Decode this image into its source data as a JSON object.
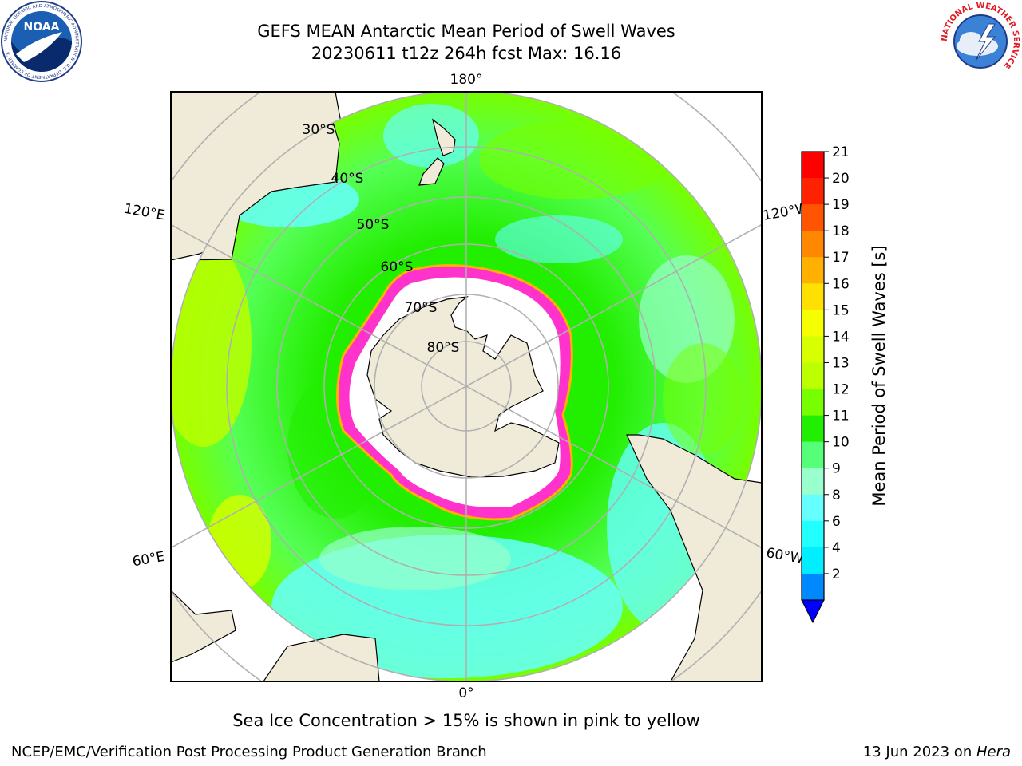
{
  "header": {
    "title_line1": "GEFS MEAN Antarctic Mean Period of Swell Waves",
    "title_line2": "20230611 t12z 264h fcst   Max: 16.16"
  },
  "logos": {
    "left": {
      "name": "noaa-logo",
      "text": "NOAA",
      "ring_text": "NATIONAL OCEANIC AND ATMOSPHERIC ADMINISTRATION · U.S. DEPARTMENT OF COMMERCE"
    },
    "right": {
      "name": "nws-logo",
      "ring_text": "NATIONAL WEATHER SERVICE"
    }
  },
  "map": {
    "projection": "south-polar-stereographic",
    "longitude_labels": {
      "top": "180°",
      "bottom": "0°",
      "left_upper": "120°E",
      "left_lower": "60°E",
      "right_upper": "120°W",
      "right_lower": "60°W"
    },
    "latitude_labels": [
      "30°S",
      "40°S",
      "50°S",
      "60°S",
      "70°S",
      "80°S"
    ],
    "colors": {
      "land": "#efebd8",
      "ice_shelf": "#ffffff",
      "sea_ice": "#ff33cc",
      "grid": "#b0b0b0"
    }
  },
  "colorbar": {
    "label": "Mean Period of Swell Waves [s]",
    "ticks": [
      "21",
      "20",
      "19",
      "18",
      "17",
      "16",
      "15",
      "14",
      "13",
      "12",
      "11",
      "10",
      "9",
      "8",
      "6",
      "4",
      "2"
    ],
    "bands_top_to_bottom": [
      "#ff0000",
      "#ff2200",
      "#ff5500",
      "#ff8800",
      "#ffb000",
      "#ffe000",
      "#f5ff00",
      "#d8ff00",
      "#bbff00",
      "#77ff00",
      "#22ee00",
      "#55ff77",
      "#99ffcc",
      "#66ffff",
      "#22ffff",
      "#00eeff",
      "#0088ff"
    ],
    "extend_color": "#0000ff"
  },
  "footer": {
    "note": "Sea Ice Concentration > 15% is shown in pink to yellow",
    "left": "NCEP/EMC/Verification Post Processing Product Generation Branch",
    "right_prefix": "13 Jun 2023 on ",
    "right_system": "Hera"
  }
}
